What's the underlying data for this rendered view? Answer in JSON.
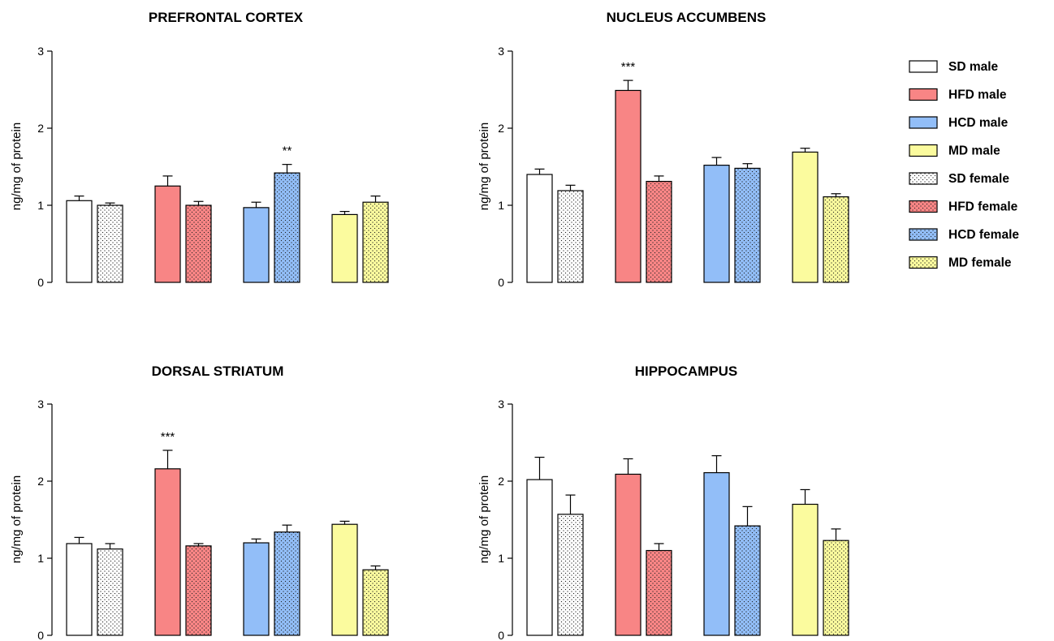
{
  "chart_data": [
    {
      "type": "bar",
      "title": "PREFRONTAL CORTEX",
      "xlabel": "",
      "ylabel": "ng/mg of protein",
      "ylim": [
        0,
        3
      ],
      "yticks": [
        "0",
        "1",
        "2",
        "3"
      ],
      "groups": [
        "SD male",
        "SD female",
        "HFD male",
        "HFD female",
        "HCD male",
        "HCD female",
        "MD male",
        "MD female"
      ],
      "values": [
        1.06,
        1.0,
        1.25,
        1.0,
        0.97,
        1.42,
        0.88,
        1.04
      ],
      "errors": [
        0.06,
        0.03,
        0.13,
        0.05,
        0.07,
        0.11,
        0.04,
        0.08
      ],
      "annotations": [
        {
          "group": "HCD female",
          "text": "**"
        }
      ]
    },
    {
      "type": "bar",
      "title": "NUCLEUS ACCUMBENS",
      "xlabel": "",
      "ylabel": "ng/mg of protein",
      "ylim": [
        0,
        3
      ],
      "yticks": [
        "0",
        "1",
        "2",
        "3"
      ],
      "groups": [
        "SD male",
        "SD female",
        "HFD male",
        "HFD female",
        "HCD male",
        "HCD female",
        "MD male",
        "MD female"
      ],
      "values": [
        1.4,
        1.19,
        2.49,
        1.31,
        1.52,
        1.48,
        1.69,
        1.11
      ],
      "errors": [
        0.07,
        0.07,
        0.13,
        0.07,
        0.1,
        0.06,
        0.05,
        0.04
      ],
      "annotations": [
        {
          "group": "HFD male",
          "text": "***"
        }
      ]
    },
    {
      "type": "bar",
      "title": "DORSAL STRIATUM",
      "xlabel": "",
      "ylabel": "ng/mg of protein",
      "ylim": [
        0,
        3
      ],
      "yticks": [
        "0",
        "1",
        "2",
        "3"
      ],
      "groups": [
        "SD male",
        "SD female",
        "HFD male",
        "HFD female",
        "HCD male",
        "HCD female",
        "MD male",
        "MD female"
      ],
      "values": [
        1.19,
        1.12,
        2.16,
        1.16,
        1.2,
        1.34,
        1.44,
        0.85
      ],
      "errors": [
        0.08,
        0.07,
        0.24,
        0.03,
        0.05,
        0.09,
        0.04,
        0.05
      ],
      "annotations": [
        {
          "group": "HFD male",
          "text": "***"
        }
      ]
    },
    {
      "type": "bar",
      "title": "HIPPOCAMPUS",
      "xlabel": "",
      "ylabel": "ng/mg of protein",
      "ylim": [
        0,
        3
      ],
      "yticks": [
        "0",
        "1",
        "2",
        "3"
      ],
      "groups": [
        "SD male",
        "SD female",
        "HFD male",
        "HFD female",
        "HCD male",
        "HCD female",
        "MD male",
        "MD female"
      ],
      "values": [
        2.02,
        1.57,
        2.09,
        1.1,
        2.11,
        1.42,
        1.7,
        1.23
      ],
      "errors": [
        0.29,
        0.25,
        0.2,
        0.09,
        0.22,
        0.25,
        0.19,
        0.15
      ],
      "annotations": []
    }
  ],
  "legend": {
    "placement": "top-right",
    "items": [
      {
        "label": "SD male",
        "color": "#ffffff",
        "pattern": "solid"
      },
      {
        "label": "HFD male",
        "color": "#f88585",
        "pattern": "solid"
      },
      {
        "label": "HCD male",
        "color": "#92bef8",
        "pattern": "solid"
      },
      {
        "label": "MD male",
        "color": "#fbfb9e",
        "pattern": "solid"
      },
      {
        "label": "SD female",
        "color": "#ffffff",
        "pattern": "dotted"
      },
      {
        "label": "HFD female",
        "color": "#f88585",
        "pattern": "dotted"
      },
      {
        "label": "HCD female",
        "color": "#92bef8",
        "pattern": "dotted"
      },
      {
        "label": "MD female",
        "color": "#fbfb9e",
        "pattern": "dotted"
      }
    ]
  },
  "colors": {
    "SD": "#ffffff",
    "HFD": "#f88585",
    "HCD": "#92bef8",
    "MD": "#fbfb9e",
    "axis": "#000000"
  }
}
